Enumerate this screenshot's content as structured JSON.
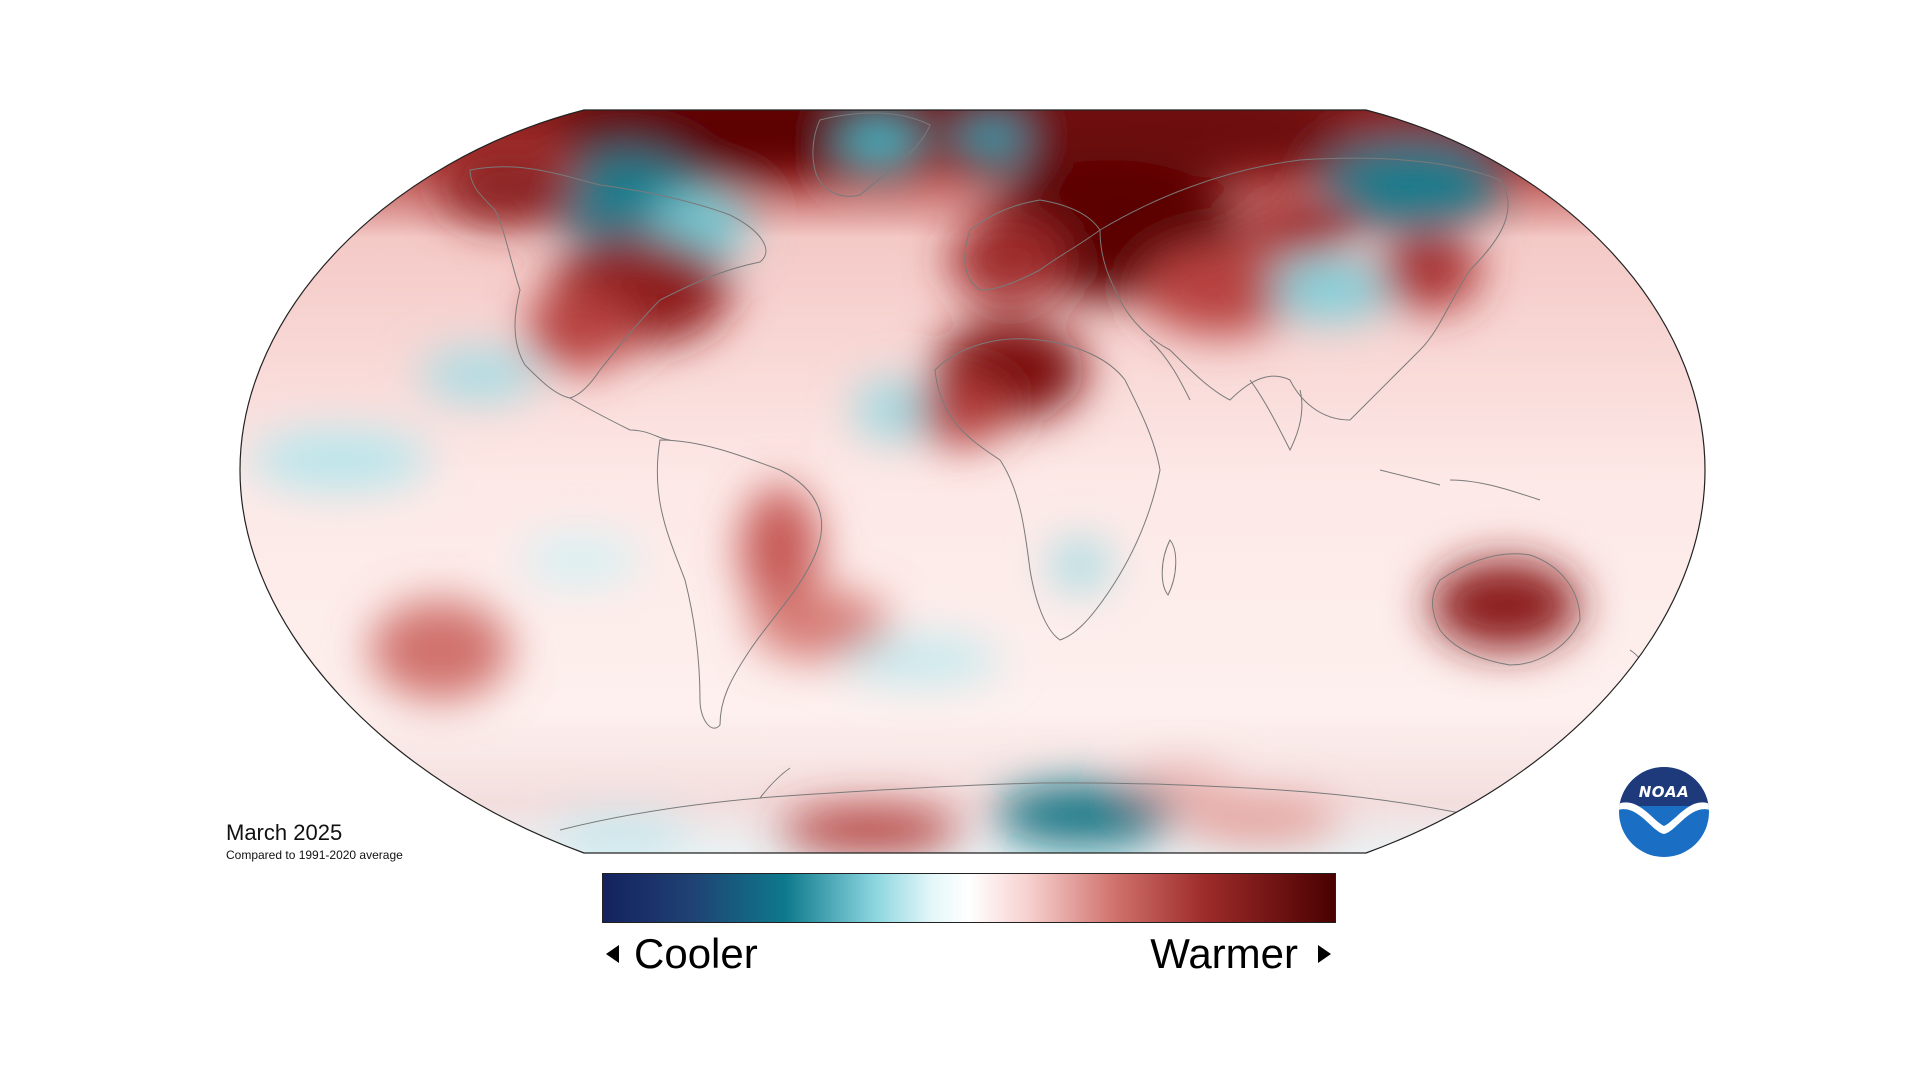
{
  "map": {
    "title": "March 2025",
    "subtitle": "Compared to 1991-2020 average",
    "projection": "Robinson",
    "colors": {
      "deep_cool": "#14225e",
      "cool": "#0e7a8c",
      "light_cool": "#c9eef3",
      "neutral": "#ffffff",
      "light_warm": "#f7d1cf",
      "warm": "#c9504e",
      "deep_warm": "#4a0000",
      "coastline": "#7a7a7a",
      "outline": "#222222"
    }
  },
  "legend": {
    "cooler_label": "Cooler",
    "warmer_label": "Warmer"
  },
  "logo": {
    "text": "NOAA",
    "colors": {
      "top": "#1f3a7a",
      "bottom": "#1a6fc4"
    }
  }
}
